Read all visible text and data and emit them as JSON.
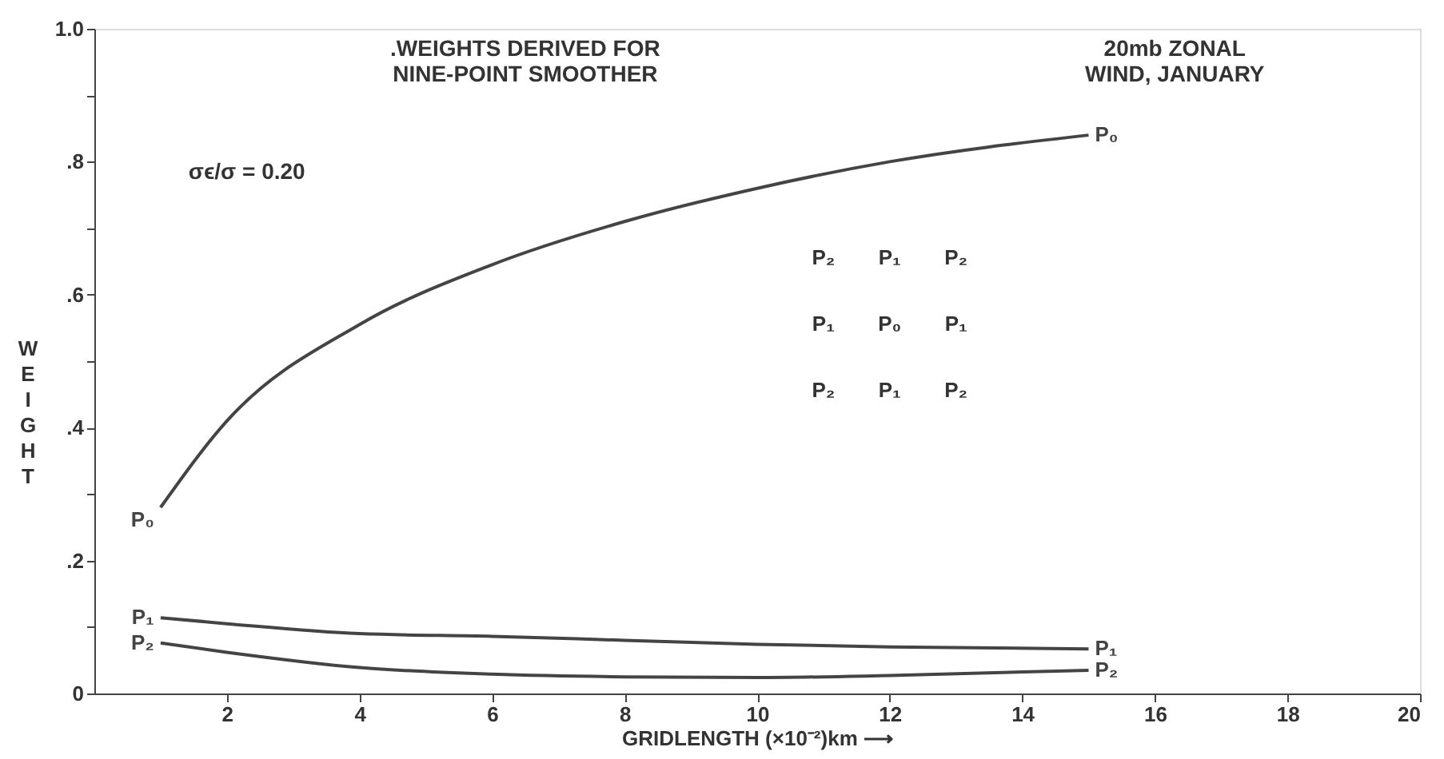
{
  "chart_data": {
    "type": "line",
    "xlabel": "GRIDLENGTH (×10⁻²)km ⟶",
    "ylabel": "WEIGHT",
    "xlim": [
      0,
      20
    ],
    "xticks": [
      2,
      4,
      6,
      8,
      10,
      12,
      14,
      16,
      18,
      20
    ],
    "ylim": [
      0,
      1.0
    ],
    "yticks": [
      0,
      {
        "value": 0.1,
        "label": null
      },
      {
        "value": 0.2,
        "label": ".2"
      },
      {
        "value": 0.3,
        "label": null
      },
      {
        "value": 0.4,
        "label": ".4"
      },
      {
        "value": 0.5,
        "label": null
      },
      {
        "value": 0.6,
        "label": ".6"
      },
      {
        "value": 0.7,
        "label": null
      },
      {
        "value": 0.8,
        "label": ".8"
      },
      {
        "value": 0.9,
        "label": null
      },
      {
        "value": 1.0,
        "label": "1.0"
      }
    ],
    "grid": false,
    "marker": "none",
    "line_style": "solid",
    "x": [
      1,
      2,
      4,
      6,
      8,
      10,
      12,
      15
    ],
    "series": [
      {
        "name": "P₀",
        "color": "#444444",
        "values": [
          0.28,
          0.41,
          0.555,
          0.645,
          0.71,
          0.76,
          0.8,
          0.84
        ]
      },
      {
        "name": "P₁",
        "color": "#444444",
        "values": [
          0.114,
          0.105,
          0.09,
          0.086,
          0.08,
          0.074,
          0.07,
          0.067
        ]
      },
      {
        "name": "P₂",
        "color": "#444444",
        "values": [
          0.076,
          0.062,
          0.039,
          0.029,
          0.025,
          0.024,
          0.027,
          0.035
        ]
      }
    ],
    "annotations": [
      ".WEIGHTS DERIVED FOR\nNINE-POINT SMOOTHER",
      "20mb ZONAL\nWIND, JANUARY",
      "σϵ/σ = 0.20",
      "P₂",
      "P₁",
      "P₂",
      "P₁",
      "P₀",
      "P₁",
      "P₂",
      "P₁",
      "P₂"
    ]
  }
}
